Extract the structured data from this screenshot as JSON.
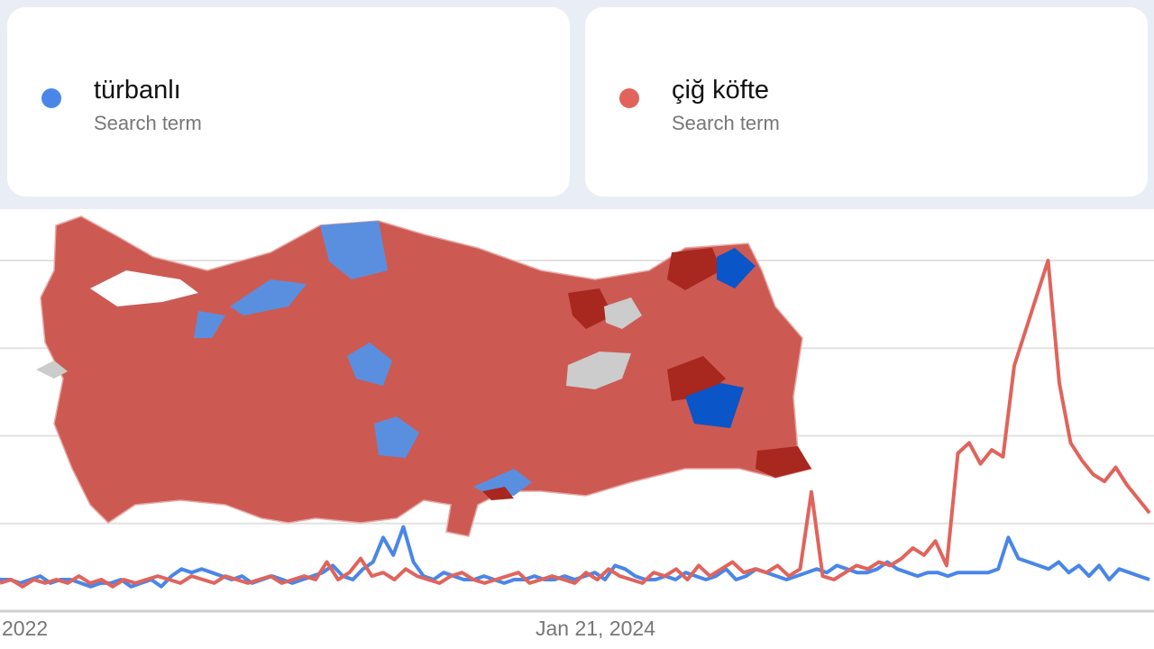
{
  "terms": [
    {
      "label": "türbanlı",
      "sublabel": "Search term",
      "color": "#4a86e8"
    },
    {
      "label": "çiğ köfte",
      "sublabel": "Search term",
      "color": "#e0645c"
    }
  ],
  "chart_data": {
    "type": "line",
    "ylim": [
      0,
      100
    ],
    "grid": true,
    "x_tick_labels": [
      "2022",
      "Jan 21, 2024"
    ],
    "series": [
      {
        "name": "türbanlı",
        "color": "#4a86e8",
        "values": [
          9,
          9,
          8,
          9,
          10,
          8,
          9,
          9,
          8,
          7,
          8,
          8,
          9,
          7,
          8,
          9,
          7,
          10,
          12,
          11,
          12,
          11,
          10,
          9,
          10,
          8,
          9,
          10,
          9,
          8,
          9,
          10,
          11,
          13,
          10,
          9,
          12,
          14,
          21,
          16,
          24,
          14,
          10,
          9,
          11,
          10,
          9,
          9,
          10,
          9,
          8,
          9,
          9,
          10,
          9,
          9,
          10,
          9,
          10,
          11,
          9,
          13,
          12,
          10,
          9,
          9,
          10,
          9,
          11,
          10,
          9,
          10,
          12,
          9,
          10,
          12,
          11,
          10,
          9,
          10,
          11,
          12,
          11,
          13,
          12,
          11,
          11,
          12,
          14,
          12,
          11,
          10,
          11,
          11,
          10,
          11,
          11,
          11,
          11,
          12,
          21,
          15,
          14,
          13,
          12,
          14,
          11,
          13,
          10,
          13,
          9,
          12,
          11,
          10,
          9
        ]
      },
      {
        "name": "çiğ köfte",
        "color": "#e0645c",
        "values": [
          8,
          9,
          7,
          9,
          8,
          9,
          8,
          10,
          8,
          9,
          7,
          9,
          8,
          9,
          10,
          9,
          8,
          10,
          9,
          8,
          10,
          9,
          8,
          9,
          10,
          8,
          9,
          10,
          9,
          14,
          9,
          11,
          15,
          10,
          11,
          9,
          12,
          10,
          9,
          8,
          10,
          11,
          9,
          8,
          9,
          10,
          11,
          8,
          9,
          10,
          9,
          8,
          11,
          9,
          12,
          10,
          9,
          8,
          11,
          10,
          12,
          9,
          13,
          10,
          12,
          14,
          11,
          12,
          11,
          13,
          10,
          12,
          34,
          10,
          9,
          11,
          13,
          12,
          14,
          13,
          15,
          18,
          16,
          20,
          13,
          45,
          48,
          42,
          46,
          44,
          70,
          80,
          90,
          100,
          65,
          48,
          43,
          39,
          37,
          41,
          36,
          32,
          28
        ]
      }
    ]
  },
  "map": {
    "colors": {
      "red": "#cc5a53",
      "dark_red": "#a8271f",
      "blue": "#5a8fe0",
      "dark_blue": "#0a55c8",
      "gray": "#cccccc"
    }
  }
}
